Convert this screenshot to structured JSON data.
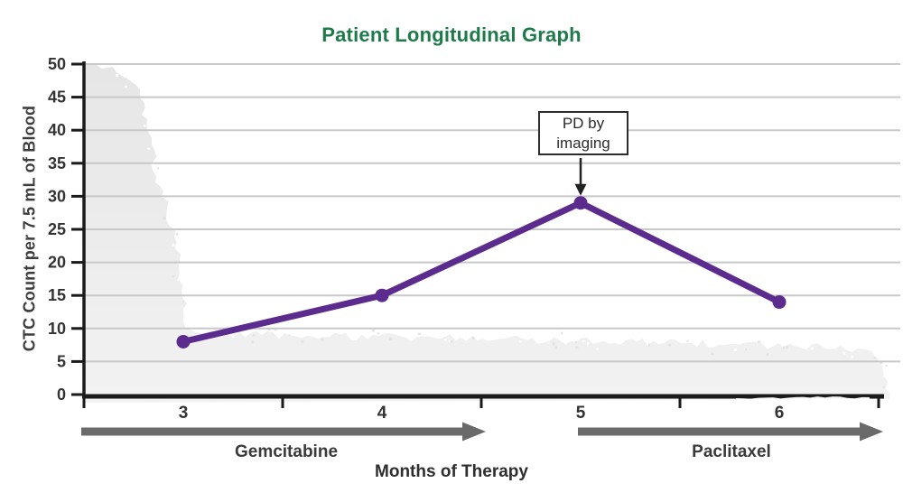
{
  "title": {
    "text": "Patient Longitudinal Graph",
    "color": "#1e7a49"
  },
  "chart_data": {
    "type": "line",
    "title": "Patient Longitudinal Graph",
    "xlabel": "Months of Therapy",
    "ylabel": "CTC Count per 7.5 mL of Blood",
    "x": [
      3,
      4,
      5,
      6
    ],
    "values": [
      8,
      15,
      29,
      14
    ],
    "series_name": "CTC count",
    "xlim": [
      2.5,
      6.5
    ],
    "ylim": [
      0,
      50
    ],
    "yticks": [
      0,
      5,
      10,
      15,
      20,
      25,
      30,
      35,
      40,
      45,
      50
    ],
    "xticks_boundaries": [
      2.5,
      3.5,
      4.5,
      5.5,
      6.5
    ],
    "grid": true,
    "legend": "none",
    "annotation": {
      "text": "PD by\nimaging",
      "target_month": 5,
      "target_value": 29
    },
    "phases": [
      {
        "label": "Gemcitabine",
        "from_month": 2.5,
        "to_month": 4.5
      },
      {
        "label": "Paclitaxel",
        "from_month": 5.0,
        "to_month": 6.5
      }
    ]
  },
  "colors": {
    "series": "#5b2c8e",
    "grid": "#c8c8c8",
    "axis": "#1a1a1a",
    "tick_text": "#333333",
    "texture_top": "#e6e6e6",
    "texture_bottom": "#f2f2f2",
    "phase_arrow": "#6a6a6a",
    "annotation_arrow": "#222222",
    "title_green": "#1e7a49"
  }
}
